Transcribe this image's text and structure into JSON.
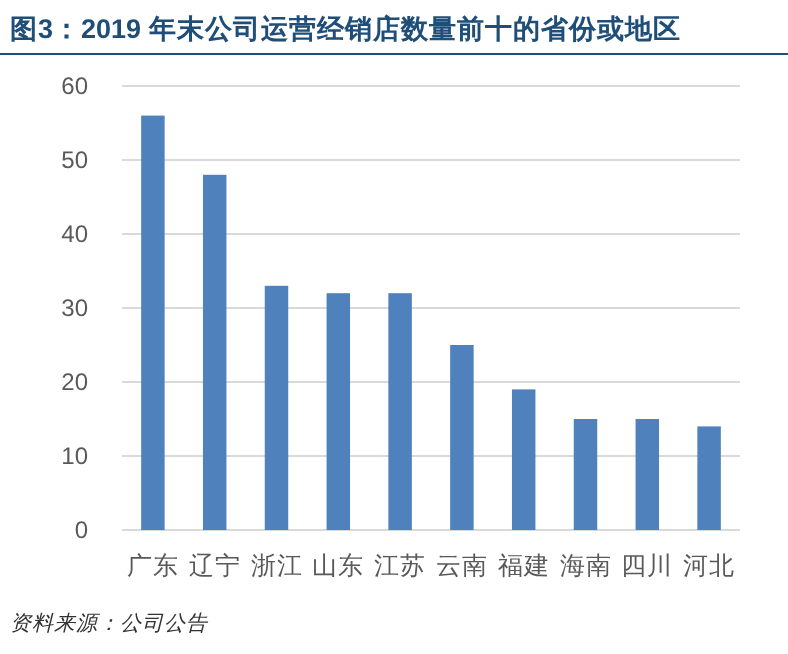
{
  "chart_data": {
    "type": "bar",
    "title": "图3：2019 年末公司运营经销店数量前十的省份或地区",
    "categories": [
      "广东",
      "辽宁",
      "浙江",
      "山东",
      "江苏",
      "云南",
      "福建",
      "海南",
      "四川",
      "河北"
    ],
    "values": [
      56,
      48,
      33,
      32,
      32,
      25,
      19,
      15,
      15,
      14
    ],
    "color": "#4f81bd",
    "ylim": [
      0,
      60
    ],
    "yticks": [
      0,
      10,
      20,
      30,
      40,
      50,
      60
    ],
    "grid": "y",
    "annotations": [
      "资料来源：公司公告"
    ]
  }
}
